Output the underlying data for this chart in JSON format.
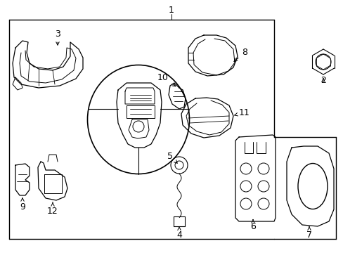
{
  "bg": "#ffffff",
  "lc": "#000000",
  "tc": "#000000",
  "fs": 9,
  "fs_small": 8,
  "figsize": [
    4.89,
    3.6
  ],
  "dpi": 100
}
